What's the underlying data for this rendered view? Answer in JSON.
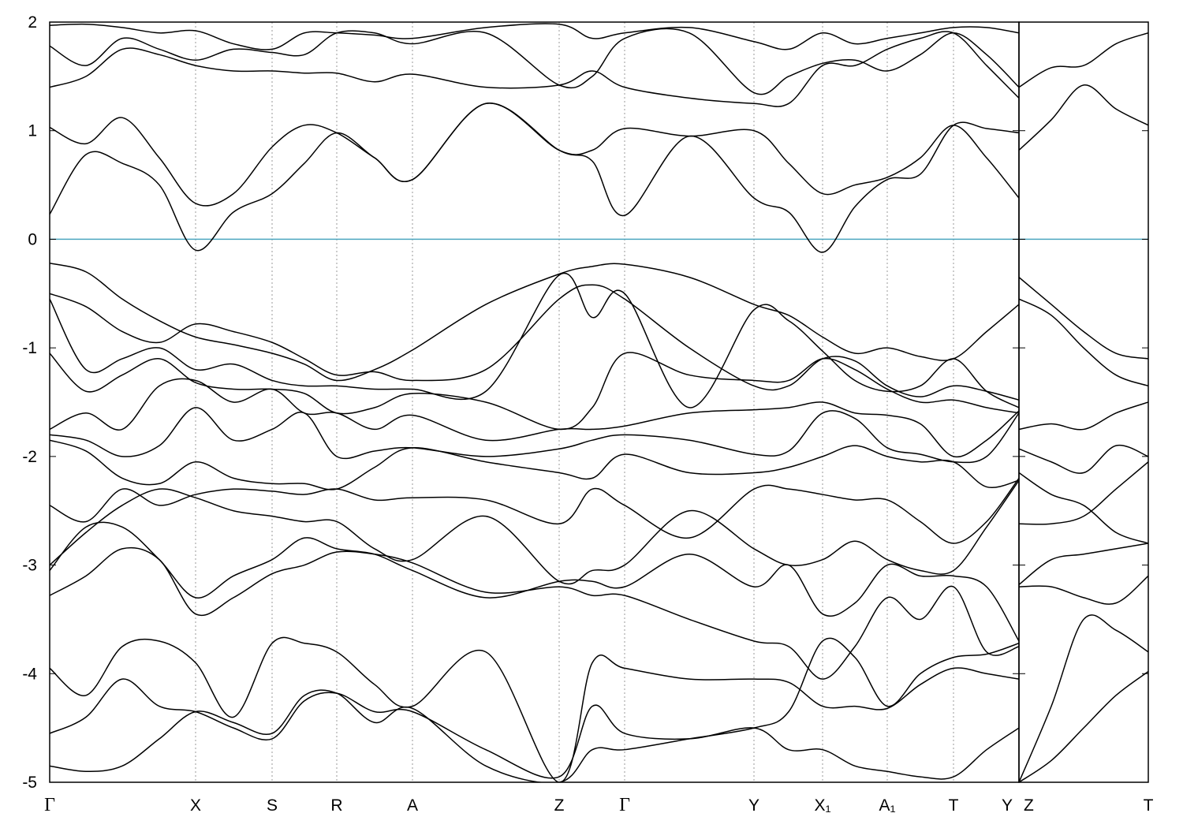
{
  "chart_data": [
    {
      "type": "line",
      "xlim": [
        0,
        1229
      ],
      "ylim": [
        -5,
        2
      ],
      "yticks": [
        -5,
        -4,
        -3,
        -2,
        -1,
        0,
        1,
        2
      ],
      "xticks": [
        {
          "value": 0,
          "label": "Γ"
        },
        {
          "value": 185,
          "label": "X"
        },
        {
          "value": 282,
          "label": "S"
        },
        {
          "value": 364,
          "label": "R"
        },
        {
          "value": 460,
          "label": "A"
        },
        {
          "value": 646,
          "label": "Z"
        },
        {
          "value": 729,
          "label": "Γ"
        },
        {
          "value": 893,
          "label": "Y"
        },
        {
          "value": 980,
          "label": "X₁"
        },
        {
          "value": 1062,
          "label": "A₁"
        },
        {
          "value": 1146,
          "label": "T"
        },
        {
          "value": 1229,
          "label": "Y"
        }
      ],
      "grid": "x",
      "hline": {
        "value": 0,
        "color": "#4da6c0"
      },
      "x": [
        0,
        46,
        92,
        139,
        185,
        233,
        282,
        323,
        364,
        412,
        460,
        553,
        646,
        688,
        729,
        811,
        893,
        937,
        980,
        1021,
        1062,
        1104,
        1146,
        1188,
        1229
      ],
      "series": [
        {
          "color": "#000",
          "values": [
            0.23,
            0.78,
            0.7,
            0.5,
            -0.1,
            0.25,
            0.42,
            0.7,
            0.98,
            0.75,
            0.55,
            1.25,
            0.82,
            0.72,
            0.22,
            0.95,
            0.38,
            0.25,
            -0.12,
            0.3,
            0.55,
            0.6,
            1.05,
            1.02,
            0.98
          ]
        },
        {
          "color": "#000",
          "values": [
            1.03,
            0.88,
            1.12,
            0.75,
            0.33,
            0.42,
            0.85,
            1.05,
            0.98,
            0.75,
            0.55,
            1.25,
            0.82,
            0.82,
            1.02,
            0.95,
            1.0,
            0.7,
            0.42,
            0.5,
            0.57,
            0.75,
            1.05,
            0.75,
            0.38
          ]
        },
        {
          "color": "#000",
          "values": [
            1.4,
            1.5,
            1.75,
            1.7,
            1.6,
            1.55,
            1.55,
            1.53,
            1.53,
            1.45,
            1.52,
            1.4,
            1.42,
            1.55,
            1.4,
            1.3,
            1.25,
            1.25,
            1.6,
            1.6,
            1.75,
            1.85,
            1.9,
            1.6,
            1.3
          ]
        },
        {
          "color": "#000",
          "values": [
            1.78,
            1.6,
            1.85,
            1.75,
            1.65,
            1.75,
            1.72,
            1.7,
            1.9,
            1.9,
            1.8,
            1.9,
            1.42,
            1.5,
            1.85,
            1.9,
            1.35,
            1.5,
            1.62,
            1.65,
            1.55,
            1.7,
            1.9,
            1.7,
            1.4
          ]
        },
        {
          "color": "#000",
          "values": [
            1.97,
            1.98,
            1.95,
            1.9,
            1.92,
            1.8,
            1.75,
            1.9,
            1.9,
            1.88,
            1.85,
            1.95,
            1.98,
            1.85,
            1.9,
            1.95,
            1.82,
            1.75,
            1.9,
            1.8,
            1.85,
            1.9,
            1.95,
            1.95,
            1.9
          ]
        },
        {
          "color": "#000",
          "values": [
            -0.22,
            -0.3,
            -0.55,
            -0.75,
            -0.9,
            -0.97,
            -1.05,
            -1.15,
            -1.3,
            -1.2,
            -1.02,
            -0.6,
            -0.32,
            -0.25,
            -0.23,
            -0.35,
            -0.6,
            -0.7,
            -0.9,
            -1.05,
            -1.0,
            -1.08,
            -1.1,
            -0.85,
            -0.6
          ]
        },
        {
          "color": "#000",
          "values": [
            -0.5,
            -0.62,
            -0.85,
            -0.95,
            -0.78,
            -0.85,
            -0.95,
            -1.1,
            -1.25,
            -1.22,
            -1.3,
            -1.2,
            -0.55,
            -0.42,
            -0.55,
            -1.0,
            -1.35,
            -1.35,
            -1.1,
            -1.12,
            -1.35,
            -1.45,
            -1.35,
            -1.4,
            -1.48
          ]
        },
        {
          "color": "#000",
          "values": [
            -0.55,
            -1.2,
            -1.1,
            -1.0,
            -1.2,
            -1.15,
            -1.3,
            -1.35,
            -1.35,
            -1.38,
            -1.38,
            -1.4,
            -0.33,
            -0.72,
            -0.5,
            -1.55,
            -0.65,
            -0.75,
            -1.03,
            -1.3,
            -1.4,
            -1.35,
            -1.1,
            -1.4,
            -1.55
          ]
        },
        {
          "color": "#000",
          "values": [
            -1.05,
            -1.4,
            -1.25,
            -1.1,
            -1.32,
            -1.38,
            -1.38,
            -1.42,
            -1.6,
            -1.55,
            -1.42,
            -1.5,
            -1.75,
            -1.55,
            -1.05,
            -1.25,
            -1.3,
            -1.3,
            -1.1,
            -1.2,
            -1.38,
            -1.5,
            -1.48,
            -1.55,
            -1.6
          ]
        },
        {
          "color": "#000",
          "values": [
            -1.75,
            -1.6,
            -1.75,
            -1.35,
            -1.3,
            -1.5,
            -1.38,
            -1.6,
            -1.6,
            -1.75,
            -1.62,
            -1.85,
            -1.75,
            -1.75,
            -1.72,
            -1.6,
            -1.57,
            -1.55,
            -1.5,
            -1.6,
            -1.62,
            -1.7,
            -2.0,
            -1.85,
            -1.58
          ]
        },
        {
          "color": "#000",
          "values": [
            -1.8,
            -1.85,
            -2.0,
            -1.9,
            -1.55,
            -1.85,
            -1.75,
            -1.6,
            -2.0,
            -1.95,
            -1.92,
            -2.0,
            -1.93,
            -1.85,
            -1.8,
            -1.85,
            -1.98,
            -1.95,
            -1.6,
            -1.65,
            -1.92,
            -1.98,
            -2.05,
            -2.0,
            -1.6
          ]
        },
        {
          "color": "#000",
          "values": [
            -1.85,
            -1.95,
            -2.2,
            -2.25,
            -2.05,
            -2.2,
            -2.25,
            -2.25,
            -2.3,
            -2.1,
            -1.92,
            -2.05,
            -2.15,
            -2.2,
            -1.98,
            -2.15,
            -2.15,
            -2.1,
            -2.0,
            -1.9,
            -2.0,
            -2.05,
            -2.05,
            -2.28,
            -2.22
          ]
        },
        {
          "color": "#000",
          "values": [
            -2.45,
            -2.6,
            -2.3,
            -2.45,
            -2.35,
            -2.3,
            -2.32,
            -2.35,
            -2.3,
            -2.4,
            -2.38,
            -2.4,
            -2.62,
            -2.3,
            -2.45,
            -2.75,
            -2.3,
            -2.3,
            -2.35,
            -2.4,
            -2.4,
            -2.6,
            -2.8,
            -2.6,
            -2.2
          ]
        },
        {
          "color": "#000",
          "values": [
            -3.0,
            -2.7,
            -2.45,
            -2.3,
            -2.38,
            -2.5,
            -2.55,
            -2.6,
            -2.6,
            -2.85,
            -2.95,
            -2.55,
            -3.15,
            -3.05,
            -3.0,
            -2.5,
            -2.85,
            -3.0,
            -2.95,
            -2.78,
            -2.95,
            -3.05,
            -3.05,
            -2.65,
            -2.22
          ]
        },
        {
          "color": "#000",
          "values": [
            -3.05,
            -2.65,
            -2.65,
            -2.95,
            -3.3,
            -3.1,
            -2.95,
            -2.75,
            -2.85,
            -2.9,
            -3.05,
            -3.3,
            -3.15,
            -3.15,
            -3.2,
            -2.9,
            -3.2,
            -3.0,
            -3.45,
            -3.35,
            -3.0,
            -3.1,
            -3.1,
            -3.2,
            -3.7
          ]
        },
        {
          "color": "#000",
          "values": [
            -3.28,
            -3.1,
            -2.85,
            -2.95,
            -3.45,
            -3.3,
            -3.08,
            -3.0,
            -2.88,
            -2.9,
            -2.98,
            -3.25,
            -3.2,
            -3.28,
            -3.28,
            -3.5,
            -3.7,
            -3.75,
            -4.05,
            -3.75,
            -3.3,
            -3.5,
            -3.2,
            -3.8,
            -3.75
          ]
        },
        {
          "color": "#000",
          "values": [
            -3.95,
            -4.2,
            -3.75,
            -3.7,
            -3.9,
            -4.4,
            -3.72,
            -3.72,
            -3.8,
            -4.1,
            -4.3,
            -3.8,
            -5.0,
            -3.9,
            -3.95,
            -4.05,
            -4.05,
            -4.08,
            -4.3,
            -4.3,
            -4.32,
            -4.1,
            -3.95,
            -4.0,
            -4.05
          ]
        },
        {
          "color": "#000",
          "values": [
            -4.55,
            -4.4,
            -4.05,
            -4.3,
            -4.35,
            -4.5,
            -4.6,
            -4.25,
            -4.18,
            -4.35,
            -4.35,
            -4.7,
            -4.95,
            -4.3,
            -4.55,
            -4.6,
            -4.5,
            -4.7,
            -4.7,
            -4.85,
            -4.9,
            -4.95,
            -4.95,
            -4.7,
            -4.5
          ]
        },
        {
          "color": "#000",
          "values": [
            -4.85,
            -4.9,
            -4.85,
            -4.6,
            -4.35,
            -4.45,
            -4.55,
            -4.2,
            -4.18,
            -4.45,
            -4.32,
            -4.85,
            -5.0,
            -4.7,
            -4.7,
            -4.6,
            -4.5,
            -4.35,
            -3.7,
            -3.85,
            -4.3,
            -4.0,
            -3.85,
            -3.82,
            -3.72
          ]
        }
      ]
    },
    {
      "type": "line",
      "xlim": [
        0,
        164
      ],
      "ylim": [
        -5,
        2
      ],
      "xticks": [
        {
          "value": 0,
          "label": "Z"
        },
        {
          "value": 164,
          "label": "T"
        }
      ],
      "hline": {
        "value": 0,
        "color": "#4da6c0"
      },
      "x": [
        0,
        41,
        82,
        123,
        164
      ],
      "series": [
        {
          "color": "#000",
          "values": [
            1.4,
            1.58,
            1.6,
            1.8,
            1.9
          ]
        },
        {
          "color": "#000",
          "values": [
            0.82,
            1.1,
            1.42,
            1.2,
            1.05
          ]
        },
        {
          "color": "#000",
          "values": [
            -0.35,
            -0.6,
            -0.85,
            -1.05,
            -1.1
          ]
        },
        {
          "color": "#000",
          "values": [
            -0.55,
            -0.7,
            -1.0,
            -1.25,
            -1.35
          ]
        },
        {
          "color": "#000",
          "values": [
            -1.75,
            -1.7,
            -1.75,
            -1.6,
            -1.5
          ]
        },
        {
          "color": "#000",
          "values": [
            -1.93,
            -2.05,
            -2.15,
            -1.9,
            -2.0
          ]
        },
        {
          "color": "#000",
          "values": [
            -2.15,
            -2.35,
            -2.45,
            -2.7,
            -2.8
          ]
        },
        {
          "color": "#000",
          "values": [
            -2.62,
            -2.62,
            -2.55,
            -2.3,
            -2.05
          ]
        },
        {
          "color": "#000",
          "values": [
            -3.18,
            -2.95,
            -2.9,
            -2.85,
            -2.8
          ]
        },
        {
          "color": "#000",
          "values": [
            -3.2,
            -3.2,
            -3.3,
            -3.35,
            -3.1
          ]
        },
        {
          "color": "#000",
          "values": [
            -5.0,
            -4.3,
            -3.5,
            -3.6,
            -3.8
          ]
        },
        {
          "color": "#000",
          "values": [
            -5.0,
            -4.8,
            -4.5,
            -4.2,
            -3.98
          ]
        }
      ]
    }
  ]
}
